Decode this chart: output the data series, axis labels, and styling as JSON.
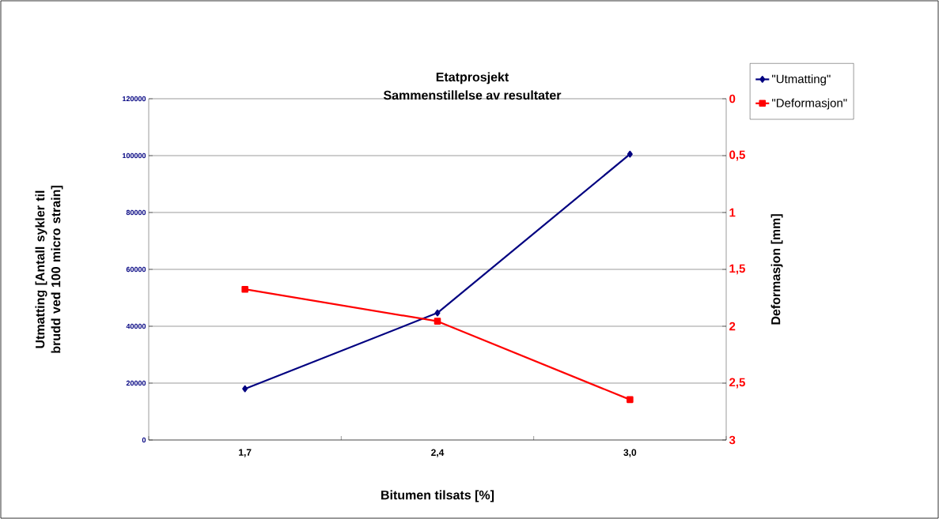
{
  "chart_data": {
    "type": "line",
    "title": "Etatprosjekt",
    "subtitle": "Sammenstillelse av resultater",
    "xlabel": "Bitumen tilsats [%]",
    "ylabel": "Utmatting [Antall sykler til brudd ved 100 micro strain]",
    "y2label": "Deformasjon [mm]",
    "categories": [
      "1,7",
      "2,4",
      "3,0"
    ],
    "series": [
      {
        "name": "\"Utmatting\"",
        "color": "#000080",
        "marker": "diamond",
        "values": [
          18000,
          44700,
          100500
        ]
      },
      {
        "name": "\"Deformasjon\"",
        "color": "#ff0000",
        "marker": "square",
        "axis": "y2",
        "values": [
          1.675,
          1.956,
          2.645
        ]
      }
    ],
    "ylim": [
      0,
      120000
    ],
    "yticks": [
      0,
      20000,
      40000,
      60000,
      80000,
      100000,
      120000
    ],
    "y2lim": [
      3,
      0
    ],
    "y2ticks": [
      0,
      {
        "value": 0.5,
        "label": "0,5"
      },
      1,
      {
        "value": 1.5,
        "label": "1,5"
      },
      2,
      {
        "value": 2.5,
        "label": "2,5"
      },
      3
    ],
    "grid": "y",
    "legend": "top right"
  }
}
